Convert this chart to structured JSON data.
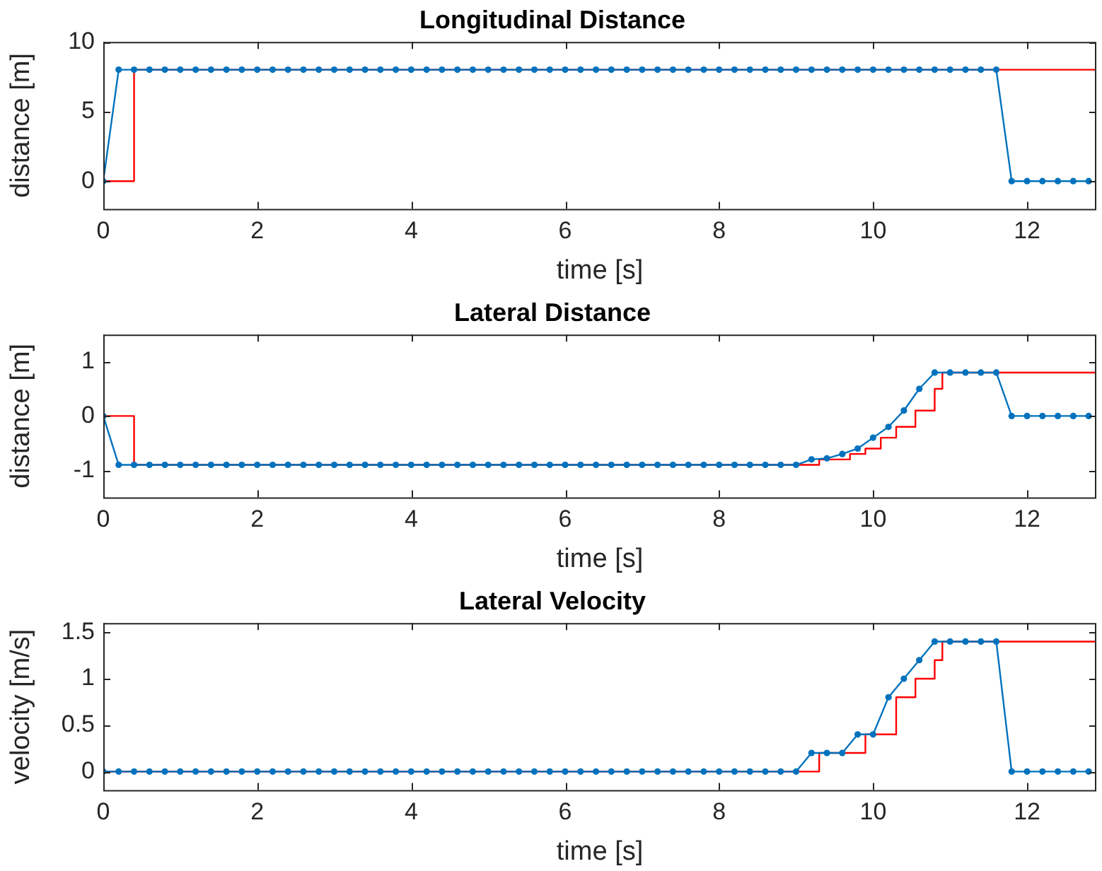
{
  "chart_data": [
    {
      "type": "line",
      "title": "Longitudinal Distance",
      "xlabel": "time [s]",
      "ylabel": "distance [m]",
      "xlim": [
        0,
        12.9
      ],
      "xticks": [
        0,
        2,
        4,
        6,
        8,
        10,
        12
      ],
      "ylim": [
        -2,
        10
      ],
      "yticks": [
        0,
        5,
        10
      ],
      "grid": false,
      "legend": false,
      "series": [
        {
          "color": "#0072bd",
          "marker": "circle",
          "x": [
            0,
            0.2,
            0.4,
            0.6,
            0.8,
            1,
            1.2,
            1.4,
            1.6,
            1.8,
            2,
            2.2,
            2.4,
            2.6,
            2.8,
            3,
            3.2,
            3.4,
            3.6,
            3.8,
            4,
            4.2,
            4.4,
            4.6,
            4.8,
            5,
            5.2,
            5.4,
            5.6,
            5.8,
            6,
            6.2,
            6.4,
            6.6,
            6.8,
            7,
            7.2,
            7.4,
            7.6,
            7.8,
            8,
            8.2,
            8.4,
            8.6,
            8.8,
            9,
            9.2,
            9.4,
            9.6,
            9.8,
            10,
            10.2,
            10.4,
            10.6,
            10.8,
            11,
            11.2,
            11.4,
            11.6,
            11.8,
            12,
            12.2,
            12.4,
            12.6,
            12.8
          ],
          "values": [
            0,
            8,
            8,
            8,
            8,
            8,
            8,
            8,
            8,
            8,
            8,
            8,
            8,
            8,
            8,
            8,
            8,
            8,
            8,
            8,
            8,
            8,
            8,
            8,
            8,
            8,
            8,
            8,
            8,
            8,
            8,
            8,
            8,
            8,
            8,
            8,
            8,
            8,
            8,
            8,
            8,
            8,
            8,
            8,
            8,
            8,
            8,
            8,
            8,
            8,
            8,
            8,
            8,
            8,
            8,
            8,
            8,
            8,
            8,
            0,
            0,
            0,
            0,
            0,
            0
          ]
        },
        {
          "type": "step",
          "color": "#ff0000",
          "marker": "none",
          "x": [
            0,
            0.4,
            12.9
          ],
          "values": [
            0,
            8,
            8
          ]
        }
      ]
    },
    {
      "type": "line",
      "title": "Lateral Distance",
      "xlabel": "time [s]",
      "ylabel": "distance [m]",
      "xlim": [
        0,
        12.9
      ],
      "xticks": [
        0,
        2,
        4,
        6,
        8,
        10,
        12
      ],
      "ylim": [
        -1.5,
        1.5
      ],
      "yticks": [
        -1,
        0,
        1
      ],
      "grid": false,
      "legend": false,
      "series": [
        {
          "color": "#0072bd",
          "marker": "circle",
          "x": [
            0,
            0.2,
            0.4,
            0.6,
            0.8,
            1,
            1.2,
            1.4,
            1.6,
            1.8,
            2,
            2.2,
            2.4,
            2.6,
            2.8,
            3,
            3.2,
            3.4,
            3.6,
            3.8,
            4,
            4.2,
            4.4,
            4.6,
            4.8,
            5,
            5.2,
            5.4,
            5.6,
            5.8,
            6,
            6.2,
            6.4,
            6.6,
            6.8,
            7,
            7.2,
            7.4,
            7.6,
            7.8,
            8,
            8.2,
            8.4,
            8.6,
            8.8,
            9,
            9.2,
            9.4,
            9.6,
            9.8,
            10,
            10.2,
            10.4,
            10.6,
            10.8,
            11,
            11.2,
            11.4,
            11.6,
            11.8,
            12,
            12.2,
            12.4,
            12.6,
            12.8
          ],
          "values": [
            0,
            -0.9,
            -0.9,
            -0.9,
            -0.9,
            -0.9,
            -0.9,
            -0.9,
            -0.9,
            -0.9,
            -0.9,
            -0.9,
            -0.9,
            -0.9,
            -0.9,
            -0.9,
            -0.9,
            -0.9,
            -0.9,
            -0.9,
            -0.9,
            -0.9,
            -0.9,
            -0.9,
            -0.9,
            -0.9,
            -0.9,
            -0.9,
            -0.9,
            -0.9,
            -0.9,
            -0.9,
            -0.9,
            -0.9,
            -0.9,
            -0.9,
            -0.9,
            -0.9,
            -0.9,
            -0.9,
            -0.9,
            -0.9,
            -0.9,
            -0.9,
            -0.9,
            -0.9,
            -0.8,
            -0.78,
            -0.7,
            -0.6,
            -0.4,
            -0.2,
            0.1,
            0.5,
            0.8,
            0.8,
            0.8,
            0.8,
            0.8,
            0,
            0,
            0,
            0,
            0,
            0
          ]
        },
        {
          "type": "step",
          "color": "#ff0000",
          "marker": "none",
          "x": [
            0,
            0.4,
            9.3,
            9.7,
            9.9,
            10.1,
            10.3,
            10.55,
            10.8,
            10.9,
            12.9
          ],
          "values": [
            0,
            -0.9,
            -0.8,
            -0.7,
            -0.6,
            -0.4,
            -0.2,
            0.1,
            0.5,
            0.8,
            0.8
          ]
        }
      ]
    },
    {
      "type": "line",
      "title": "Lateral Velocity",
      "xlabel": "time [s]",
      "ylabel": "velocity [m/s]",
      "xlim": [
        0,
        12.9
      ],
      "xticks": [
        0,
        2,
        4,
        6,
        8,
        10,
        12
      ],
      "ylim": [
        -0.2,
        1.6
      ],
      "yticks": [
        0,
        0.5,
        1,
        1.5
      ],
      "grid": false,
      "legend": false,
      "series": [
        {
          "color": "#0072bd",
          "marker": "circle",
          "x": [
            0,
            0.2,
            0.4,
            0.6,
            0.8,
            1,
            1.2,
            1.4,
            1.6,
            1.8,
            2,
            2.2,
            2.4,
            2.6,
            2.8,
            3,
            3.2,
            3.4,
            3.6,
            3.8,
            4,
            4.2,
            4.4,
            4.6,
            4.8,
            5,
            5.2,
            5.4,
            5.6,
            5.8,
            6,
            6.2,
            6.4,
            6.6,
            6.8,
            7,
            7.2,
            7.4,
            7.6,
            7.8,
            8,
            8.2,
            8.4,
            8.6,
            8.8,
            9,
            9.2,
            9.4,
            9.6,
            9.8,
            10,
            10.2,
            10.4,
            10.6,
            10.8,
            11,
            11.2,
            11.4,
            11.6,
            11.8,
            12,
            12.2,
            12.4,
            12.6,
            12.8
          ],
          "values": [
            0,
            0,
            0,
            0,
            0,
            0,
            0,
            0,
            0,
            0,
            0,
            0,
            0,
            0,
            0,
            0,
            0,
            0,
            0,
            0,
            0,
            0,
            0,
            0,
            0,
            0,
            0,
            0,
            0,
            0,
            0,
            0,
            0,
            0,
            0,
            0,
            0,
            0,
            0,
            0,
            0,
            0,
            0,
            0,
            0,
            0,
            0.2,
            0.2,
            0.2,
            0.4,
            0.4,
            0.8,
            1,
            1.2,
            1.4,
            1.4,
            1.4,
            1.4,
            1.4,
            0,
            0,
            0,
            0,
            0,
            0
          ]
        },
        {
          "type": "step",
          "color": "#ff0000",
          "marker": "none",
          "x": [
            0,
            9.3,
            9.9,
            10.3,
            10.55,
            10.8,
            10.9,
            12.9
          ],
          "values": [
            0,
            0.2,
            0.4,
            0.8,
            1,
            1.2,
            1.4,
            1.4
          ]
        }
      ]
    }
  ]
}
